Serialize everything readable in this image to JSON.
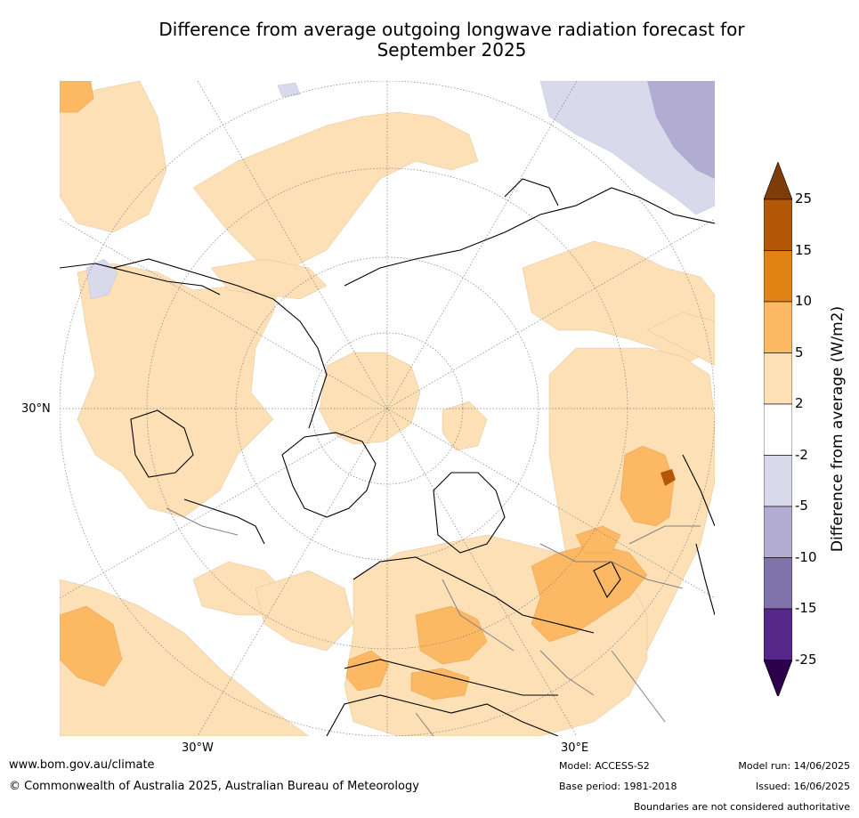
{
  "title": {
    "line1": "Difference from average outgoing longwave radiation forecast for",
    "line2": "September 2025"
  },
  "map": {
    "projection": "north-polar-stereographic",
    "labels": {
      "lat": "30°N",
      "lon_west": "30°W",
      "lon_east": "30°E"
    },
    "colors": {
      "land_outline": "#000000",
      "border_line": "#808080",
      "grid_line": "#808080"
    }
  },
  "colorbar": {
    "title": "Difference from average (W/m2)",
    "ticks": [
      "25",
      "15",
      "10",
      "5",
      "2",
      "-2",
      "-5",
      "-10",
      "-15",
      "-25"
    ],
    "bins": [
      {
        "range": ">25",
        "color": "#7f3b08"
      },
      {
        "range": "15 to 25",
        "color": "#b35806"
      },
      {
        "range": "10 to 15",
        "color": "#e08214"
      },
      {
        "range": "5 to 10",
        "color": "#fdb863"
      },
      {
        "range": "2 to 5",
        "color": "#fee0b6"
      },
      {
        "range": "-2 to 2",
        "color": "#ffffff"
      },
      {
        "range": "-5 to -2",
        "color": "#d8daeb"
      },
      {
        "range": "-10 to -5",
        "color": "#b2abd2"
      },
      {
        "range": "-15 to -10",
        "color": "#8073ac"
      },
      {
        "range": "-25 to -15",
        "color": "#542788"
      },
      {
        "range": "<-25",
        "color": "#2d004b"
      }
    ]
  },
  "footer": {
    "website": "www.bom.gov.au/climate",
    "copyright": "© Commonwealth of Australia 2025, Australian Bureau of Meteorology",
    "model": "Model: ACCESS-S2",
    "base_period": "Base period: 1981-2018",
    "model_run": "Model run: 14/06/2025",
    "issued": "Issued: 16/06/2025",
    "disclaimer": "Boundaries are not considered authoritative"
  }
}
